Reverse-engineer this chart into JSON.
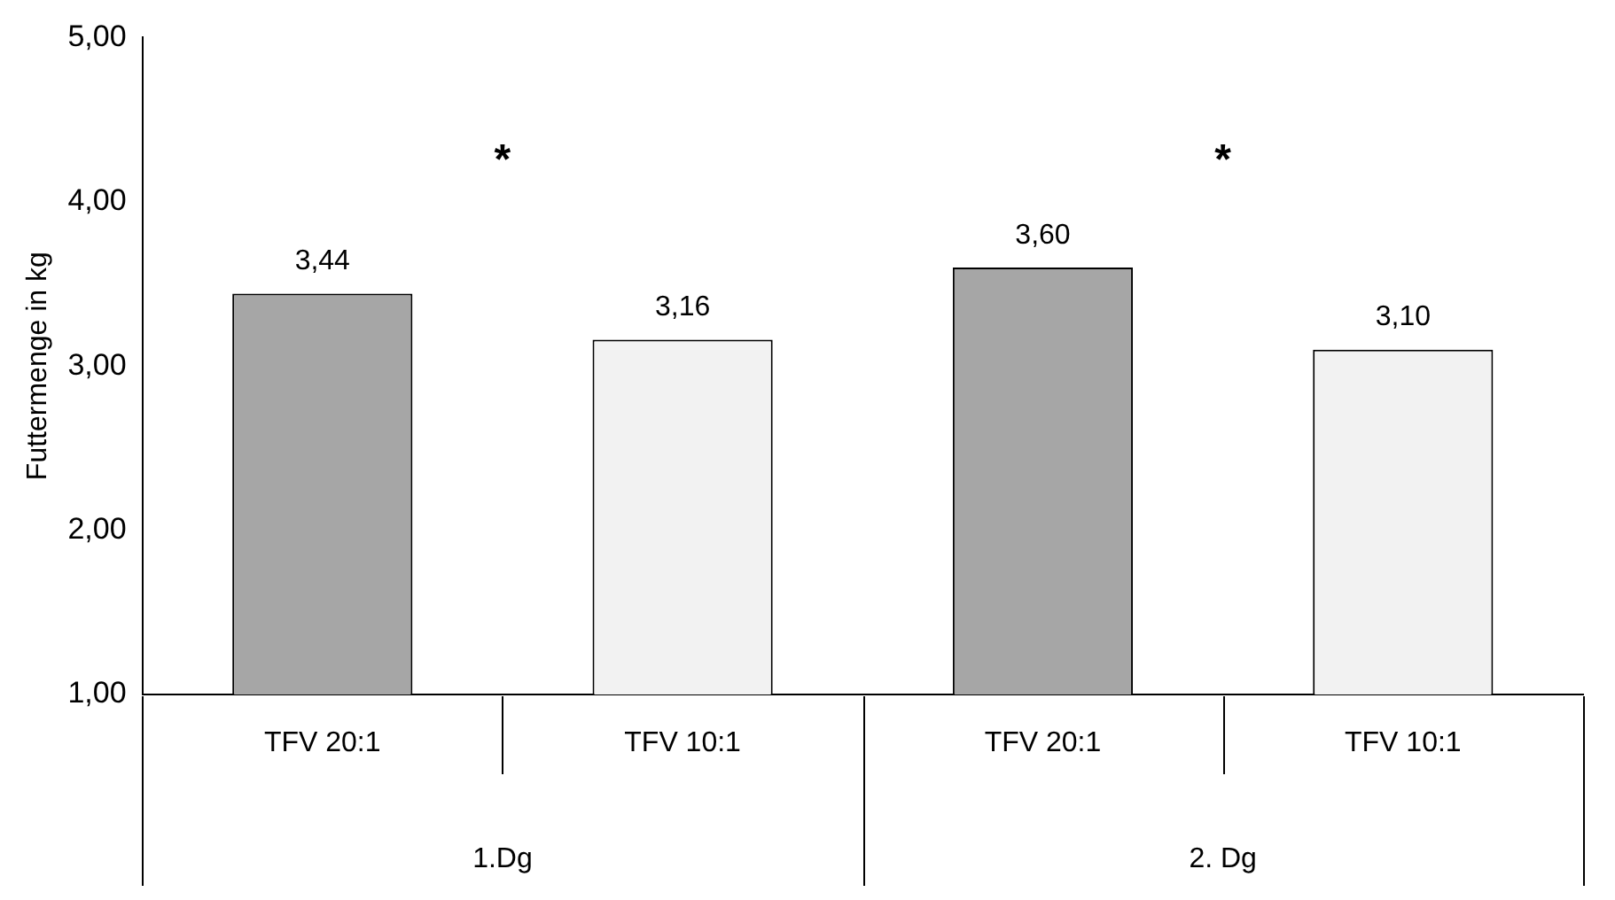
{
  "chart_data": {
    "type": "bar",
    "ylabel": "Futtermenge in kg",
    "categories": [
      "TFV 20:1",
      "TFV 10:1",
      "TFV 20:1",
      "TFV 10:1"
    ],
    "values": [
      3.44,
      3.16,
      3.6,
      3.1
    ],
    "colors": [
      "#a6a6a6",
      "#f2f2f2",
      "#a6a6a6",
      "#f2f2f2"
    ],
    "value_labels": [
      "3,44",
      "3,16",
      "3,60",
      "3,10"
    ],
    "ylim": [
      1,
      5
    ],
    "yticks": [
      {
        "value": 1,
        "label": "1,00"
      },
      {
        "value": 2,
        "label": "2,00"
      },
      {
        "value": 3,
        "label": "3,00"
      },
      {
        "value": 4,
        "label": "4,00"
      },
      {
        "value": 5,
        "label": "5,00"
      }
    ],
    "annotations": [
      "1.Dg",
      "2. Dg",
      "*",
      "*"
    ],
    "grid": false,
    "legend": false
  }
}
